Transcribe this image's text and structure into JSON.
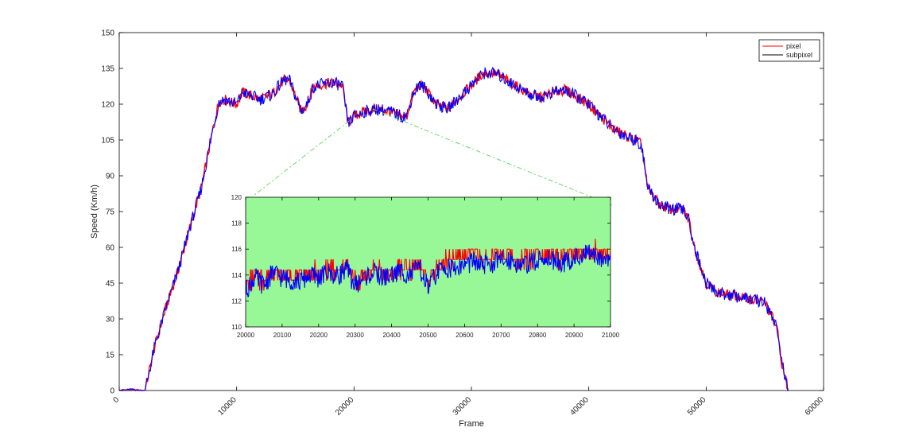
{
  "chart_data": [
    {
      "id": "main",
      "type": "line",
      "title": "",
      "xlabel": "Frame",
      "ylabel": "Speed (Km/h)",
      "xlim": [
        0,
        60000
      ],
      "ylim": [
        0,
        150
      ],
      "xticks": [
        "0",
        "10000",
        "20000",
        "30000",
        "40000",
        "50000",
        "60000"
      ],
      "yticks": [
        "0",
        "15",
        "30",
        "45",
        "60",
        "75",
        "90",
        "105",
        "120",
        "135",
        "150"
      ],
      "legend": {
        "position": "top-right",
        "entries": [
          "pixel",
          "subpixel"
        ]
      },
      "grid": false,
      "series": [
        {
          "name": "pixel",
          "color": "#ff0000",
          "x": [
            0,
            1000,
            1800,
            2200,
            3000,
            4000,
            5000,
            6000,
            7000,
            8000,
            8500,
            9000,
            10000,
            10500,
            11000,
            12000,
            13000,
            14000,
            14500,
            15500,
            16000,
            16500,
            17000,
            18000,
            19000,
            19500,
            20000,
            21000,
            22000,
            23000,
            24000,
            24500,
            25000,
            25500,
            26000,
            27000,
            28000,
            29000,
            30000,
            31000,
            32000,
            33000,
            34000,
            35000,
            36000,
            37000,
            38000,
            39000,
            40000,
            41000,
            42000,
            43000,
            44000,
            44500,
            45000,
            46000,
            47000,
            48000,
            48500,
            49000,
            50000,
            51000,
            52000,
            53000,
            54000,
            55000,
            55500,
            56000,
            56500,
            57000
          ],
          "y": [
            0,
            0.5,
            0,
            0,
            18,
            35,
            50,
            68,
            85,
            110,
            121,
            122,
            120,
            125,
            124,
            122,
            124,
            130,
            130,
            117,
            120,
            127,
            128,
            129,
            128,
            112,
            115,
            117,
            118,
            117,
            115,
            115,
            124,
            128,
            127,
            120,
            118,
            123,
            128,
            133,
            133,
            130,
            127,
            124,
            123,
            125,
            126,
            123,
            120,
            115,
            110,
            107,
            105,
            103,
            85,
            78,
            76,
            76,
            72,
            60,
            45,
            41,
            40,
            39,
            38,
            37,
            32,
            27,
            10,
            0
          ]
        },
        {
          "name": "subpixel",
          "color": "#0000ff",
          "x": [
            0,
            1000,
            1800,
            2200,
            3000,
            4000,
            5000,
            6000,
            7000,
            8000,
            8500,
            9000,
            10000,
            10500,
            11000,
            12000,
            13000,
            14000,
            14500,
            15500,
            16000,
            16500,
            17000,
            18000,
            19000,
            19500,
            20000,
            21000,
            22000,
            23000,
            24000,
            24500,
            25000,
            25500,
            26000,
            27000,
            28000,
            29000,
            30000,
            31000,
            32000,
            33000,
            34000,
            35000,
            36000,
            37000,
            38000,
            39000,
            40000,
            41000,
            42000,
            43000,
            44000,
            44500,
            45000,
            46000,
            47000,
            48000,
            48500,
            49000,
            50000,
            51000,
            52000,
            53000,
            54000,
            55000,
            55500,
            56000,
            56500,
            57000
          ],
          "y": [
            0,
            0.5,
            0,
            0,
            18,
            35,
            50,
            68,
            85,
            110,
            121,
            122,
            120,
            125,
            124,
            122,
            124,
            130,
            130,
            117,
            120,
            127,
            128,
            129,
            128,
            112,
            115,
            117,
            118,
            117,
            115,
            115,
            124,
            128,
            127,
            120,
            118,
            123,
            128,
            133,
            133,
            130,
            127,
            124,
            123,
            125,
            126,
            123,
            120,
            115,
            110,
            107,
            105,
            103,
            85,
            78,
            76,
            76,
            72,
            60,
            45,
            41,
            40,
            39,
            38,
            37,
            32,
            27,
            10,
            0
          ]
        }
      ]
    },
    {
      "id": "inset",
      "type": "line",
      "title": "",
      "xlabel": "",
      "ylabel": "",
      "xlim": [
        20000,
        21000
      ],
      "ylim": [
        110,
        120
      ],
      "xticks": [
        "20000",
        "20100",
        "20200",
        "20300",
        "20400",
        "20500",
        "20600",
        "20700",
        "20800",
        "20900",
        "21000"
      ],
      "yticks": [
        "110",
        "112",
        "114",
        "116",
        "118",
        "120"
      ],
      "background": "#98f898",
      "grid": false,
      "series": [
        {
          "name": "pixel",
          "color": "#ff0000",
          "x": [
            20000,
            20025,
            20050,
            20075,
            20100,
            20125,
            20150,
            20175,
            20200,
            20225,
            20250,
            20275,
            20300,
            20325,
            20350,
            20375,
            20400,
            20425,
            20450,
            20475,
            20500,
            20525,
            20550,
            20575,
            20600,
            20625,
            20650,
            20675,
            20700,
            20725,
            20750,
            20775,
            20800,
            20825,
            20850,
            20875,
            20900,
            20925,
            20950,
            20975,
            21000
          ],
          "y": [
            113,
            114,
            113.5,
            114.5,
            114,
            114,
            113.8,
            114.3,
            114,
            114.5,
            114.2,
            114.8,
            113.5,
            114,
            114.5,
            114,
            114.2,
            114.6,
            114.3,
            114.9,
            113.5,
            114.5,
            115,
            115.2,
            115.6,
            115.8,
            115.2,
            115.4,
            115.5,
            115.6,
            115.1,
            115.3,
            115.5,
            115.8,
            115.4,
            115.2,
            115.5,
            115.6,
            115.8,
            115.7,
            115.5
          ]
        },
        {
          "name": "subpixel",
          "color": "#0000ff",
          "x": [
            20000,
            20025,
            20050,
            20075,
            20100,
            20125,
            20150,
            20175,
            20200,
            20225,
            20250,
            20275,
            20300,
            20325,
            20350,
            20375,
            20400,
            20425,
            20450,
            20475,
            20500,
            20525,
            20550,
            20575,
            20600,
            20625,
            20650,
            20675,
            20700,
            20725,
            20750,
            20775,
            20800,
            20825,
            20850,
            20875,
            20900,
            20925,
            20950,
            20975,
            21000
          ],
          "y": [
            112.8,
            113.8,
            113.2,
            114.2,
            113.8,
            113.6,
            113.5,
            114,
            113.8,
            114.2,
            113.9,
            114.5,
            113.2,
            113.8,
            114.2,
            113.8,
            114,
            114.3,
            114,
            114.6,
            113,
            114.2,
            114.6,
            114.5,
            114.8,
            115,
            114.7,
            114.9,
            115.1,
            115.2,
            114.8,
            114.9,
            115.1,
            115.4,
            115.1,
            115,
            115.3,
            115.5,
            115.6,
            115.4,
            115.3
          ]
        }
      ]
    }
  ]
}
